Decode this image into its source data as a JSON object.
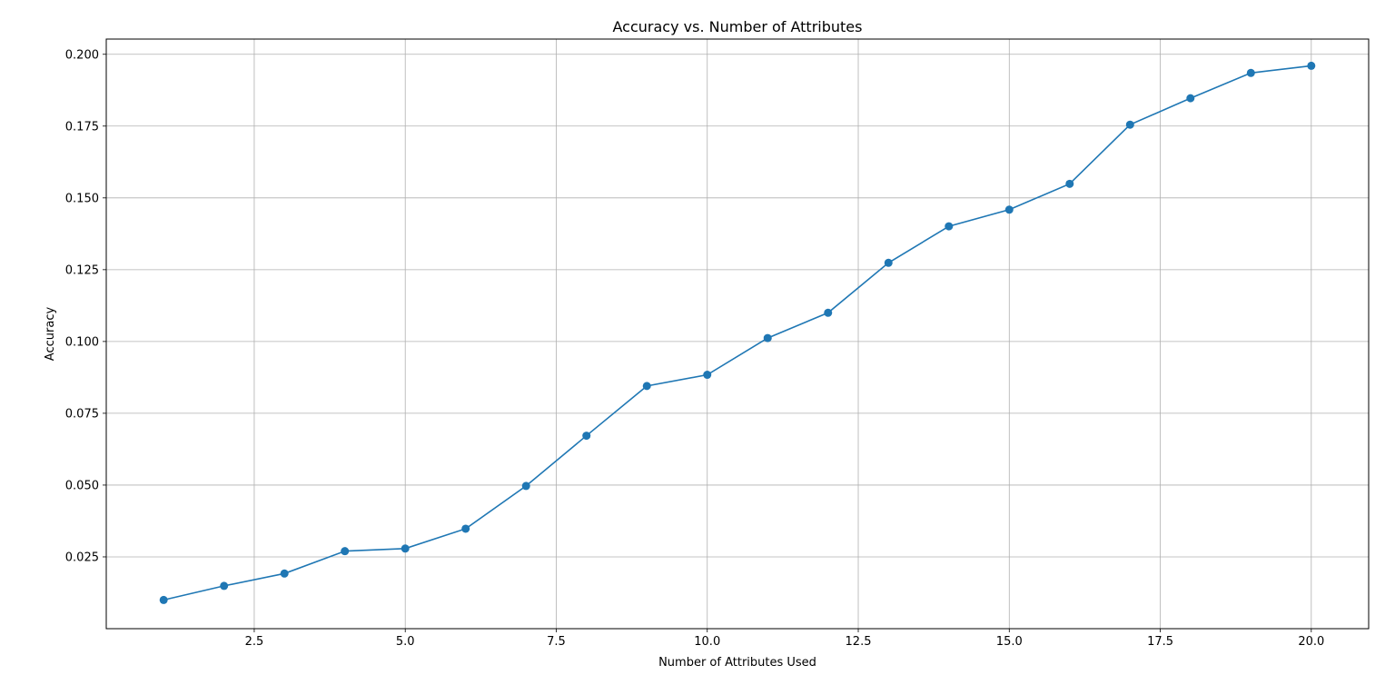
{
  "chart_data": {
    "type": "line",
    "title": "Accuracy vs. Number of Attributes",
    "xlabel": "Number of Attributes Used",
    "ylabel": "Accuracy",
    "xlim": [
      0.05,
      20.95
    ],
    "ylim": [
      0.0,
      0.2053
    ],
    "xticks": [
      2.5,
      5.0,
      7.5,
      10.0,
      12.5,
      15.0,
      17.5,
      20.0
    ],
    "xtick_labels": [
      "2.5",
      "5.0",
      "7.5",
      "10.0",
      "12.5",
      "15.0",
      "17.5",
      "20.0"
    ],
    "yticks": [
      0.025,
      0.05,
      0.075,
      0.1,
      0.125,
      0.15,
      0.175,
      0.2
    ],
    "ytick_labels": [
      "0.025",
      "0.050",
      "0.075",
      "0.100",
      "0.125",
      "0.150",
      "0.175",
      "0.200"
    ],
    "grid": true,
    "series": [
      {
        "color": "#1f77b4",
        "marker": "circle",
        "x": [
          1,
          2,
          3,
          4,
          5,
          6,
          7,
          8,
          9,
          10,
          11,
          12,
          13,
          14,
          15,
          16,
          17,
          18,
          19,
          20
        ],
        "y": [
          0.01,
          0.0149,
          0.0192,
          0.027,
          0.0279,
          0.0348,
          0.0497,
          0.0672,
          0.0845,
          0.0884,
          0.1012,
          0.11,
          0.1274,
          0.1401,
          0.1459,
          0.1549,
          0.1755,
          0.1847,
          0.1935,
          0.196
        ]
      }
    ]
  }
}
